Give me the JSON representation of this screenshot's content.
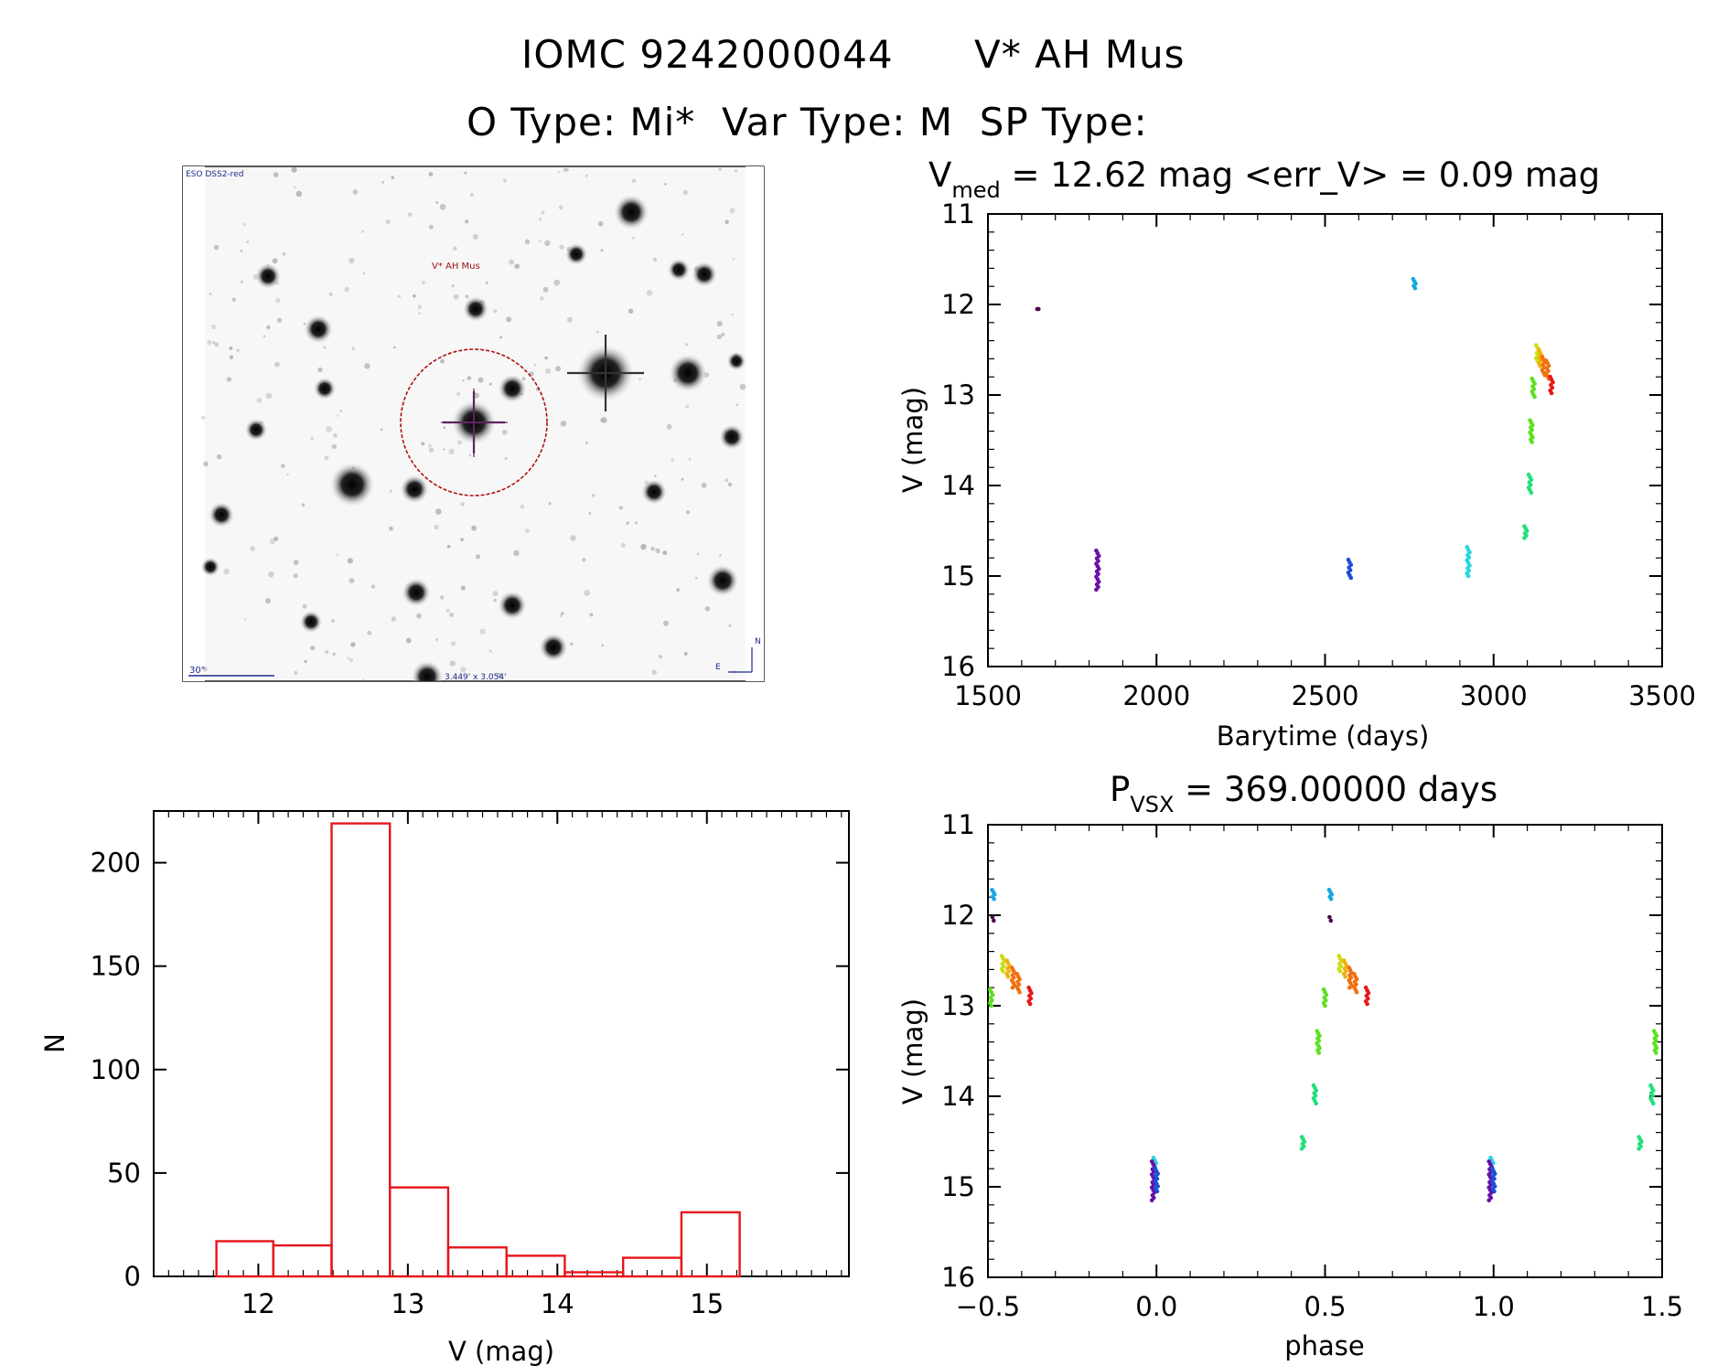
{
  "header": {
    "line1_id": "IOMC 9242000044",
    "line1_name": "V* AH Mus",
    "line2": "O Type: Mi*  Var Type: M  SP Type:"
  },
  "finder": {
    "survey": "ESO DSS2-red",
    "target": "V* AH Mus",
    "scale": "30\"",
    "fov": "3.449' x 3.054'",
    "north": "N",
    "east": "E"
  },
  "colors": {
    "histogram": "#e8141b",
    "circle": "#b01010",
    "palette": [
      "#4a0a4a",
      "#6a0fa8",
      "#1a4fd8",
      "#17a8e0",
      "#24d8e0",
      "#22e07a",
      "#5ee020",
      "#c8e010",
      "#f0b010",
      "#f07010",
      "#e81818"
    ]
  },
  "chart_data": [
    {
      "type": "scatter",
      "name": "light-curve",
      "title_main": "V",
      "title_sub": "med",
      "title_rest": " = 12.62 mag <err_V> = 0.09 mag",
      "xlabel": "Barytime (days)",
      "ylabel": "V (mag)",
      "xlim": [
        1500,
        3500
      ],
      "ylim": [
        16,
        11
      ],
      "xticks": [
        1500,
        2000,
        2500,
        3000,
        3500
      ],
      "yticks": [
        11,
        12,
        13,
        14,
        15,
        16
      ],
      "groups": [
        {
          "x": 1650,
          "y": [
            12.05,
            12.05
          ],
          "color": 0
        },
        {
          "x": 1825,
          "y": [
            14.72,
            15.15
          ],
          "color": 1
        },
        {
          "x": 2573,
          "y": [
            14.82,
            15.02
          ],
          "color": 2
        },
        {
          "x": 2765,
          "y": [
            11.72,
            11.82
          ],
          "color": 3
        },
        {
          "x": 2925,
          "y": [
            14.68,
            15.0
          ],
          "color": 4
        },
        {
          "x": 3095,
          "y": [
            14.45,
            14.58
          ],
          "color": 5
        },
        {
          "x": 3108,
          "y": [
            13.88,
            14.08
          ],
          "color": 5
        },
        {
          "x": 3112,
          "y": [
            13.28,
            13.52
          ],
          "color": 6
        },
        {
          "x": 3118,
          "y": [
            12.82,
            13.02
          ],
          "color": 6
        },
        {
          "x": 3130,
          "y": [
            12.45,
            12.62
          ],
          "color": 7
        },
        {
          "x": 3138,
          "y": [
            12.5,
            12.68
          ],
          "color": 8
        },
        {
          "x": 3148,
          "y": [
            12.58,
            12.78
          ],
          "color": 9
        },
        {
          "x": 3160,
          "y": [
            12.62,
            12.82
          ],
          "color": 9
        },
        {
          "x": 3172,
          "y": [
            12.8,
            12.98
          ],
          "color": 10
        }
      ]
    },
    {
      "type": "scatter",
      "name": "phase-curve",
      "title_main": "P",
      "title_sub": "VSX",
      "title_rest": " = 369.00000 days",
      "xlabel": "phase",
      "ylabel": "V (mag)",
      "xlim": [
        -0.5,
        1.5
      ],
      "ylim": [
        16,
        11
      ],
      "xticks": [
        -0.5,
        0.0,
        0.5,
        1.0,
        1.5
      ],
      "xticklabels": [
        "−0.5",
        "0.0",
        "0.5",
        "1.0",
        "1.5"
      ],
      "yticks": [
        11,
        12,
        13,
        14,
        15,
        16
      ],
      "groups": [
        {
          "x": -0.484,
          "y": [
            11.72,
            11.82
          ],
          "color": 3
        },
        {
          "x": -0.483,
          "y": [
            12.02,
            12.06
          ],
          "color": 0
        },
        {
          "x": -0.49,
          "y": [
            12.82,
            13.0
          ],
          "color": 6
        },
        {
          "x": -0.455,
          "y": [
            12.45,
            12.62
          ],
          "color": 7
        },
        {
          "x": -0.44,
          "y": [
            12.5,
            12.68
          ],
          "color": 8
        },
        {
          "x": -0.425,
          "y": [
            12.58,
            12.8
          ],
          "color": 9
        },
        {
          "x": -0.41,
          "y": [
            12.65,
            12.85
          ],
          "color": 9
        },
        {
          "x": -0.375,
          "y": [
            12.8,
            12.98
          ],
          "color": 10
        },
        {
          "x": -0.005,
          "y": [
            14.68,
            15.0
          ],
          "color": 4
        },
        {
          "x": -0.01,
          "y": [
            14.72,
            15.15
          ],
          "color": 1
        },
        {
          "x": 0.0,
          "y": [
            14.8,
            15.05
          ],
          "color": 2
        },
        {
          "x": 0.435,
          "y": [
            14.45,
            14.58
          ],
          "color": 5
        },
        {
          "x": 0.47,
          "y": [
            13.88,
            14.08
          ],
          "color": 5
        },
        {
          "x": 0.48,
          "y": [
            13.28,
            13.52
          ],
          "color": 6
        },
        {
          "x": 0.5,
          "y": [
            12.82,
            13.0
          ],
          "color": 6
        },
        {
          "x": 0.516,
          "y": [
            11.72,
            11.82
          ],
          "color": 3
        },
        {
          "x": 0.517,
          "y": [
            12.02,
            12.06
          ],
          "color": 0
        },
        {
          "x": 0.545,
          "y": [
            12.45,
            12.62
          ],
          "color": 7
        },
        {
          "x": 0.56,
          "y": [
            12.5,
            12.68
          ],
          "color": 8
        },
        {
          "x": 0.575,
          "y": [
            12.58,
            12.8
          ],
          "color": 9
        },
        {
          "x": 0.59,
          "y": [
            12.65,
            12.85
          ],
          "color": 9
        },
        {
          "x": 0.625,
          "y": [
            12.8,
            12.98
          ],
          "color": 10
        },
        {
          "x": 0.995,
          "y": [
            14.68,
            15.0
          ],
          "color": 4
        },
        {
          "x": 0.99,
          "y": [
            14.72,
            15.15
          ],
          "color": 1
        },
        {
          "x": 1.0,
          "y": [
            14.8,
            15.05
          ],
          "color": 2
        },
        {
          "x": 1.435,
          "y": [
            14.45,
            14.58
          ],
          "color": 5
        },
        {
          "x": 1.47,
          "y": [
            13.88,
            14.08
          ],
          "color": 5
        },
        {
          "x": 1.48,
          "y": [
            13.28,
            13.52
          ],
          "color": 6
        }
      ]
    },
    {
      "type": "bar",
      "name": "histogram",
      "xlabel": "V (mag)",
      "ylabel": "N",
      "xlim": [
        11.3,
        15.95
      ],
      "ylim": [
        0,
        225
      ],
      "xticks": [
        12,
        13,
        14,
        15
      ],
      "yticks": [
        0,
        50,
        100,
        150,
        200
      ],
      "bin_edges": [
        11.72,
        12.1,
        12.49,
        12.88,
        13.27,
        13.66,
        14.05,
        14.44,
        14.83,
        15.22
      ],
      "values": [
        17,
        15,
        219,
        43,
        14,
        10,
        2,
        9,
        31
      ]
    }
  ]
}
